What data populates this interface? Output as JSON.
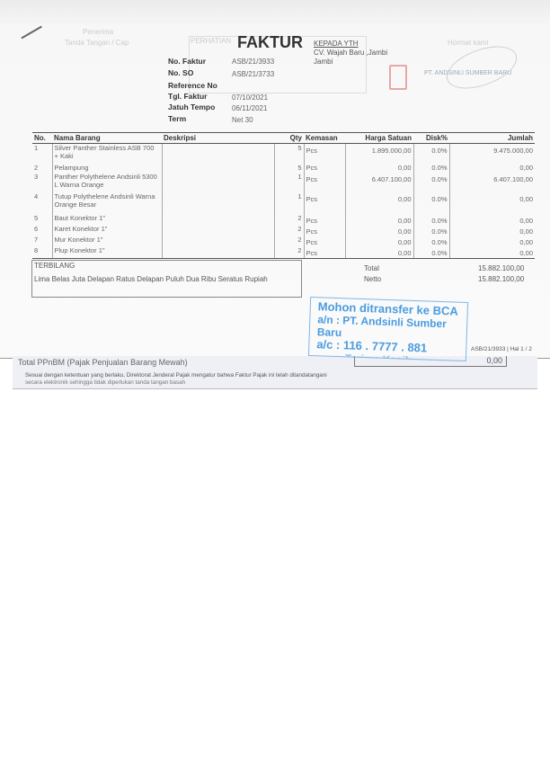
{
  "title": "FAKTUR",
  "faded": {
    "penerima": "Penerima",
    "ttd": "Tanda Tangan / Cap",
    "perhatian": "PERHATIAN",
    "hormat": "Hormat kami"
  },
  "customer": {
    "label": "KEPADA YTH",
    "name": "CV. Wajah Baru ,Jambi",
    "city": "Jambi"
  },
  "meta": [
    {
      "label": "No. Faktur",
      "value": "ASB/21/3933"
    },
    {
      "label": "No. SO",
      "value": "ASB/21/3733"
    },
    {
      "label": "Reference No",
      "value": ""
    },
    {
      "label": "Tgl. Faktur",
      "value": "07/10/2021"
    },
    {
      "label": "Jatuh Tempo",
      "value": "06/11/2021"
    },
    {
      "label": "Term",
      "value": "Net 30"
    }
  ],
  "table": {
    "headers": [
      "No.",
      "Nama Barang",
      "Deskripsi",
      "Qty",
      "Kemasan",
      "Harga Satuan",
      "Disk%",
      "Jumlah"
    ],
    "rows": [
      [
        "1",
        "Silver Panther Stainless ASB 700 + Kaki",
        "",
        "5",
        "Pcs",
        "1.895.000,00",
        "0.0%",
        "9.475.000,00"
      ],
      [
        "2",
        "Pelampung",
        "",
        "5",
        "Pcs",
        "0,00",
        "0.0%",
        "0,00"
      ],
      [
        "3",
        "Panther Polythelene Andsinli 5300 L Warna Orange",
        "",
        "1",
        "Pcs",
        "6.407.100,00",
        "0.0%",
        "6.407.100,00"
      ],
      [
        "4",
        "Tutup Polythelene Andsinli Warna Orange Besar",
        "",
        "1",
        "Pcs",
        "0,00",
        "0.0%",
        "0,00"
      ],
      [
        "5",
        "Baut Konektor 1\"",
        "",
        "2",
        "Pcs",
        "0,00",
        "0.0%",
        "0,00"
      ],
      [
        "6",
        "Karet Konektor 1\"",
        "",
        "2",
        "Pcs",
        "0,00",
        "0.0%",
        "0,00"
      ],
      [
        "7",
        "Mur Konektor 1\"",
        "",
        "2",
        "Pcs",
        "0,00",
        "0.0%",
        "0,00"
      ],
      [
        "8",
        "Plup Konektor 1\"",
        "",
        "2",
        "Pcs",
        "0,00",
        "0.0%",
        "0,00"
      ]
    ]
  },
  "terbilang": {
    "label": "TERBILANG",
    "text": "Lima Belas Juta Delapan Ratus Delapan Puluh Dua Ribu Seratus Rupiah"
  },
  "totals": {
    "total_label": "Total",
    "total": "15.882.100,00",
    "netto_label": "Netto",
    "netto": "15.882.100,00"
  },
  "stamp": {
    "line1": "Mohon ditransfer ke BCA",
    "line2": "a/n : PT. Andsinli Sumber Baru",
    "line3": "a/c : 116 . 7777 . 881",
    "line4": "Terima Kasih"
  },
  "logo": {
    "text": "PT. ANDSINLI SUMBER BARU"
  },
  "page_ref": "ASB/21/3933 | Hal 1 / 2",
  "strip": {
    "ppnbm_label": "Total PPnBM (Pajak Penjualan Barang Mewah)",
    "ppnbm_value": "0,00",
    "note": "Sesuai dengan ketentuan yang berlaku, Direktorat Jenderal Pajak mengatur bahwa Faktur Pajak ini telah ditandatangani",
    "note2": "secara elektronik sehingga tidak diperlukan tanda tangan basah"
  }
}
